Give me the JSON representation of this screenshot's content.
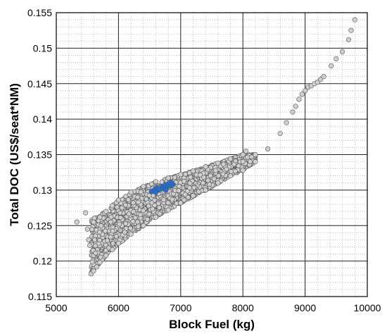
{
  "chart_data": {
    "type": "scatter",
    "title": "",
    "xlabel": "Block Fuel (kg)",
    "ylabel": "Total DOC (US$/seat*NM)",
    "xlim": [
      5000,
      10000
    ],
    "ylim": [
      0.115,
      0.155
    ],
    "x_ticks": [
      5000,
      6000,
      7000,
      8000,
      9000,
      10000
    ],
    "x_tick_labels": [
      "5000",
      "6000",
      "7000",
      "8000",
      "9000",
      "10000"
    ],
    "y_ticks": [
      0.115,
      0.12,
      0.125,
      0.13,
      0.135,
      0.14,
      0.145,
      0.15,
      0.155
    ],
    "y_tick_labels": [
      "0.115",
      "0.12",
      "0.125",
      "0.13",
      "0.135",
      "0.14",
      "0.145",
      "0.15",
      "0.155"
    ],
    "grid": true,
    "minor_grid": true,
    "colors": {
      "main_points": "#cfcfcf",
      "highlight_points": "#1f6fd6",
      "point_edge": "#555555",
      "grid_major": "#222222",
      "grid_minor": "#9a9a9a"
    },
    "series": [
      {
        "points": [
          [
            5330,
            0.1255
          ],
          [
            5470,
            0.1268
          ],
          [
            5500,
            0.1245
          ],
          [
            5520,
            0.123
          ],
          [
            5540,
            0.1222
          ],
          [
            5560,
            0.1182
          ],
          [
            5600,
            0.1186
          ],
          [
            5650,
            0.1192
          ],
          [
            5700,
            0.1198
          ],
          [
            5800,
            0.1208
          ],
          [
            5900,
            0.1216
          ],
          [
            6000,
            0.1225
          ],
          [
            6200,
            0.1238
          ],
          [
            6400,
            0.125
          ],
          [
            6600,
            0.1262
          ],
          [
            6800,
            0.1272
          ],
          [
            7000,
            0.1282
          ],
          [
            7200,
            0.1292
          ],
          [
            7400,
            0.13
          ],
          [
            7600,
            0.131
          ],
          [
            7800,
            0.132
          ],
          [
            8000,
            0.1328
          ],
          [
            8200,
            0.134
          ],
          [
            8400,
            0.1358
          ],
          [
            8600,
            0.138
          ],
          [
            8700,
            0.1395
          ],
          [
            8800,
            0.141
          ],
          [
            8850,
            0.1418
          ],
          [
            8900,
            0.1428
          ],
          [
            8950,
            0.1435
          ],
          [
            9000,
            0.144
          ],
          [
            9050,
            0.1445
          ],
          [
            9100,
            0.1447
          ],
          [
            9150,
            0.145
          ],
          [
            9200,
            0.1452
          ],
          [
            9250,
            0.1456
          ],
          [
            9300,
            0.146
          ],
          [
            9420,
            0.1475
          ],
          [
            9500,
            0.1485
          ],
          [
            9600,
            0.1495
          ],
          [
            9700,
            0.1512
          ],
          [
            9740,
            0.1525
          ],
          [
            9800,
            0.154
          ],
          [
            5600,
            0.1255
          ],
          [
            5700,
            0.1262
          ],
          [
            5800,
            0.127
          ],
          [
            5900,
            0.1278
          ],
          [
            6000,
            0.1286
          ],
          [
            6200,
            0.1297
          ],
          [
            6400,
            0.1305
          ],
          [
            6600,
            0.1312
          ],
          [
            6800,
            0.1317
          ],
          [
            7000,
            0.1322
          ],
          [
            7200,
            0.1327
          ],
          [
            7400,
            0.1333
          ],
          [
            7600,
            0.1338
          ],
          [
            7800,
            0.1344
          ],
          [
            8000,
            0.135
          ],
          [
            8050,
            0.1355
          ],
          [
            8200,
            0.135
          ]
        ]
      },
      {
        "points": [
          [
            6530,
            0.1298
          ],
          [
            6580,
            0.1301
          ],
          [
            6620,
            0.1303
          ],
          [
            6650,
            0.13
          ],
          [
            6700,
            0.1305
          ],
          [
            6720,
            0.1302
          ],
          [
            6750,
            0.1307
          ],
          [
            6780,
            0.1304
          ],
          [
            6800,
            0.1309
          ],
          [
            6830,
            0.1306
          ],
          [
            6850,
            0.1311
          ],
          [
            6880,
            0.1308
          ],
          [
            6600,
            0.1297
          ],
          [
            6760,
            0.13
          ]
        ]
      }
    ]
  }
}
